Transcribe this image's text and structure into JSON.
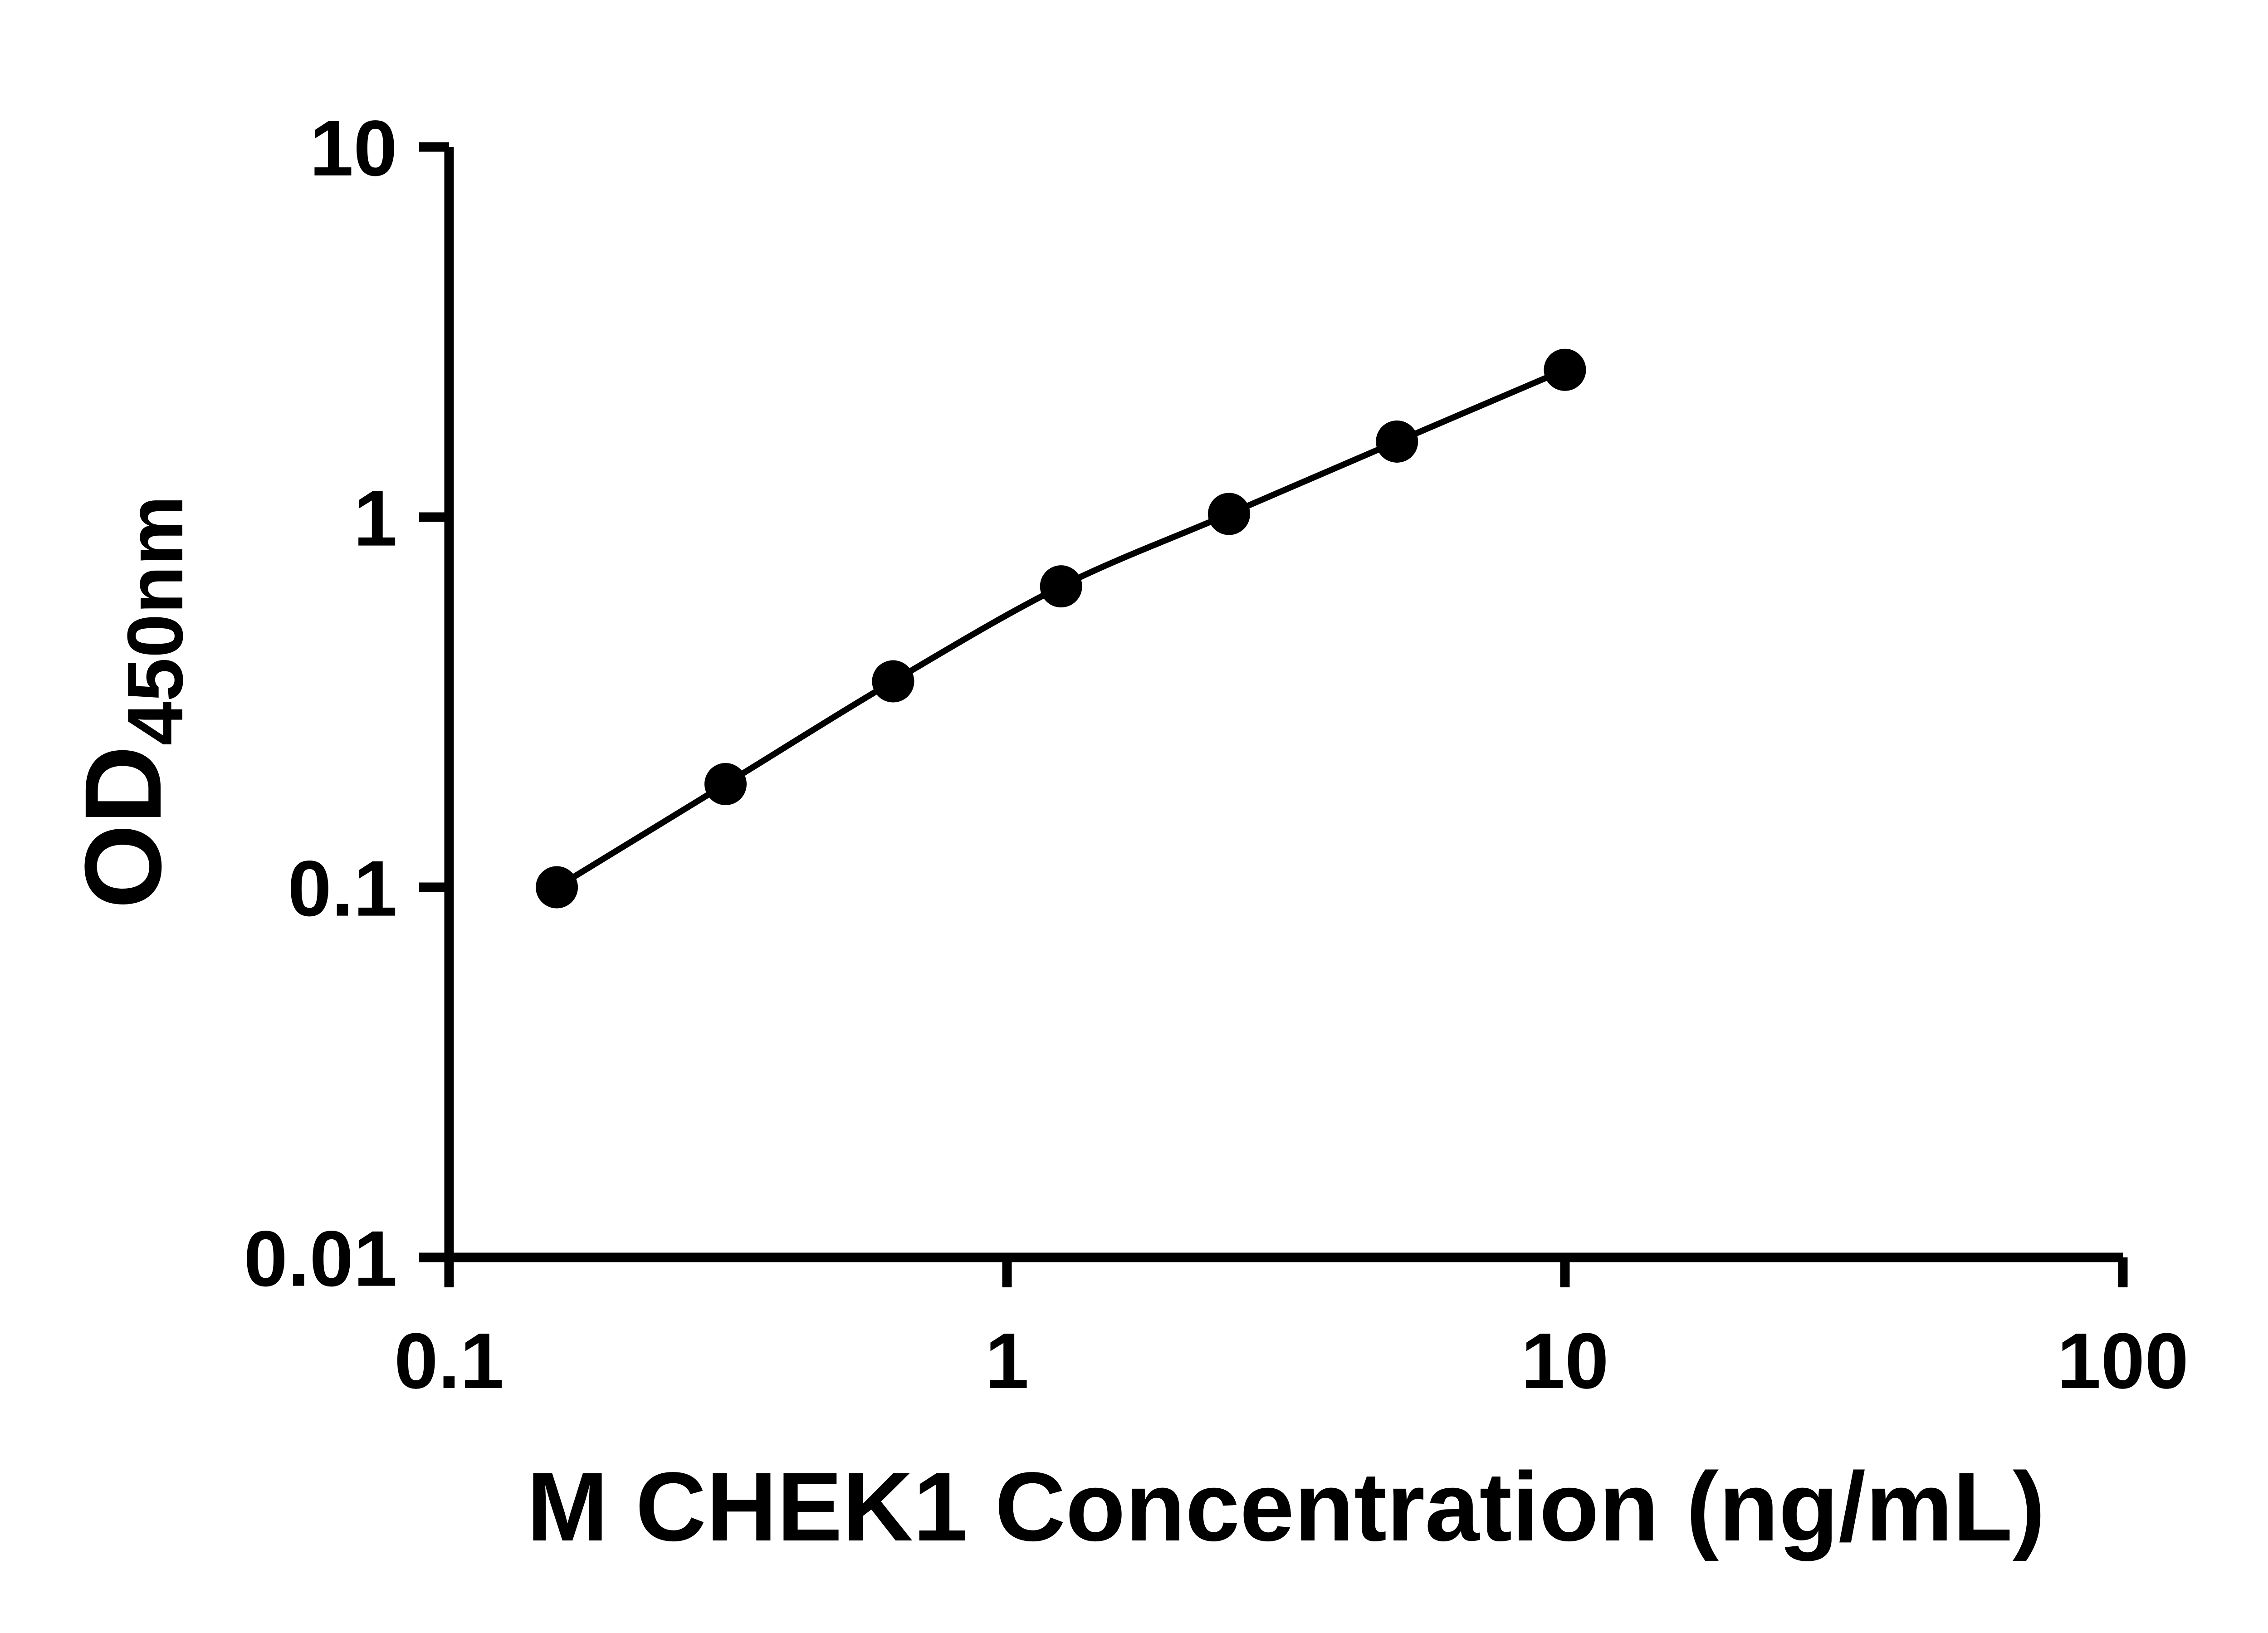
{
  "figure": {
    "background_color": "#ffffff",
    "foreground_color": "#000000"
  },
  "chart_data": {
    "type": "line",
    "subtype": "xy standard curve with circular markers",
    "title": "",
    "xlabel": "M CHEK1 Concentration (ng/mL)",
    "ylabel": "OD450nm",
    "ylabel_parts": {
      "main": "OD",
      "subscript": "450nm"
    },
    "x_scale": "log",
    "y_scale": "log",
    "xlim": [
      0.1,
      100
    ],
    "ylim": [
      0.01,
      10
    ],
    "x_ticks": [
      {
        "value": 0.1,
        "label": "0.1"
      },
      {
        "value": 1,
        "label": "1"
      },
      {
        "value": 10,
        "label": "10"
      },
      {
        "value": 100,
        "label": "100"
      }
    ],
    "y_ticks": [
      {
        "value": 0.01,
        "label": "0.01"
      },
      {
        "value": 0.1,
        "label": "0.1"
      },
      {
        "value": 1,
        "label": "1"
      },
      {
        "value": 10,
        "label": "10"
      }
    ],
    "grid": false,
    "legend": "none",
    "tick_direction": "out",
    "marker": {
      "shape": "circle",
      "color": "#000000"
    },
    "line": {
      "color": "#000000",
      "style": "solid"
    },
    "series": [
      {
        "points": [
          {
            "x": 0.156,
            "y": 0.1
          },
          {
            "x": 0.313,
            "y": 0.19
          },
          {
            "x": 0.625,
            "y": 0.36
          },
          {
            "x": 1.25,
            "y": 0.65
          },
          {
            "x": 2.5,
            "y": 1.02
          },
          {
            "x": 5,
            "y": 1.6
          },
          {
            "x": 10,
            "y": 2.5
          }
        ]
      }
    ]
  }
}
